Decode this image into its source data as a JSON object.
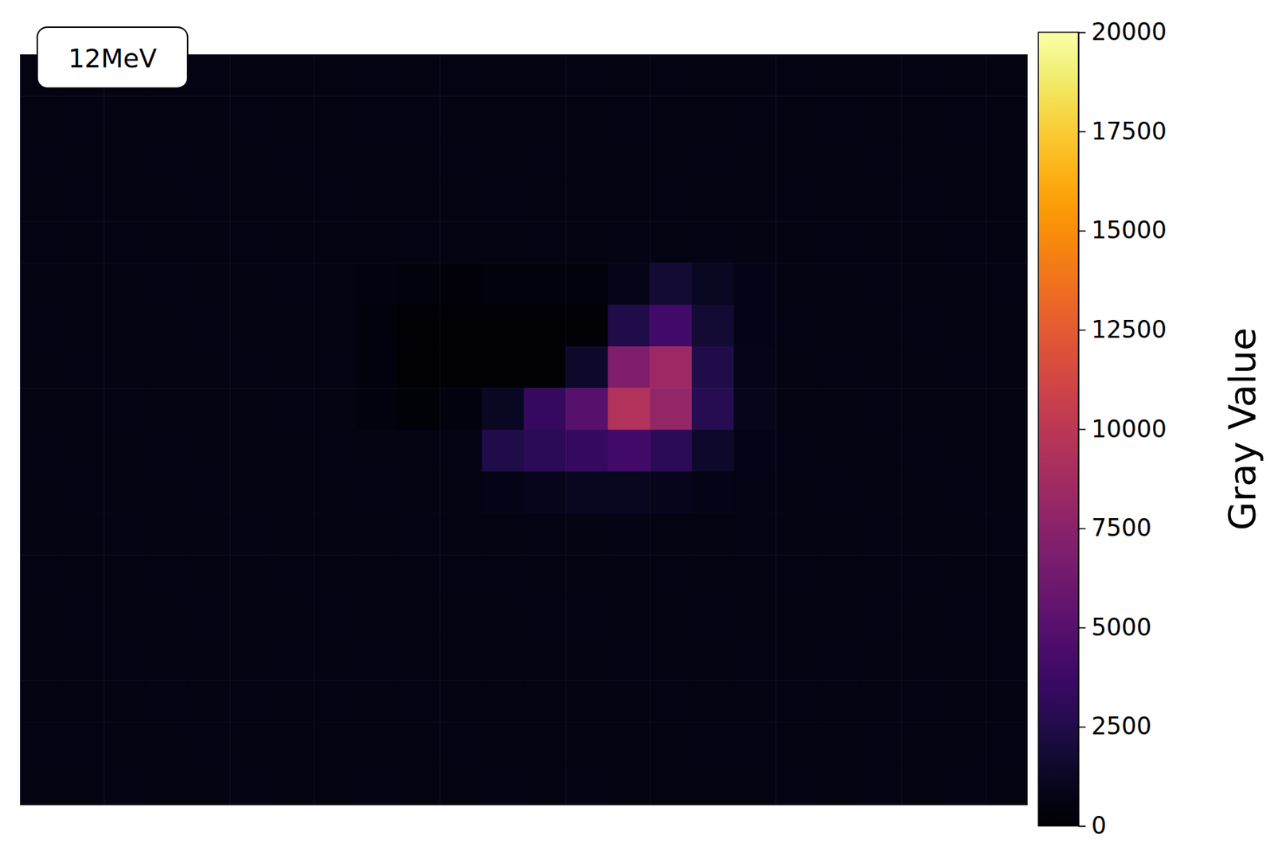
{
  "chart_data": {
    "type": "heatmap",
    "annotations": [
      "12MeV"
    ],
    "tick_labels": false,
    "color": "inferno",
    "colorbar": {
      "label": "Gray Value",
      "range": [
        0,
        20000
      ],
      "ticks": [
        0,
        2500,
        5000,
        7500,
        10000,
        12500,
        15000,
        17500,
        20000
      ]
    },
    "cells": [
      [
        700,
        650,
        720,
        680,
        760,
        700,
        640,
        690,
        730,
        670,
        710,
        650,
        700,
        740,
        680,
        720,
        690,
        660,
        710,
        700,
        650,
        730,
        680,
        700
      ],
      [
        680,
        720,
        650,
        700,
        690,
        740,
        700,
        660,
        710,
        720,
        680,
        700,
        650,
        690,
        730,
        700,
        660,
        710,
        680,
        740,
        700,
        670,
        720,
        690
      ],
      [
        720,
        680,
        700,
        740,
        660,
        700,
        720,
        690,
        650,
        700,
        740,
        680,
        720,
        700,
        670,
        690,
        720,
        700,
        650,
        700,
        730,
        690,
        700,
        660
      ],
      [
        690,
        710,
        680,
        700,
        720,
        660,
        700,
        740,
        700,
        680,
        700,
        720,
        680,
        650,
        700,
        720,
        690,
        700,
        730,
        680,
        700,
        720,
        660,
        700
      ],
      [
        710,
        700,
        730,
        660,
        700,
        720,
        690,
        700,
        680,
        720,
        660,
        700,
        710,
        690,
        720,
        700,
        760,
        700,
        690,
        710,
        680,
        700,
        720,
        690
      ],
      [
        700,
        680,
        700,
        720,
        690,
        700,
        710,
        680,
        600,
        400,
        380,
        400,
        420,
        450,
        900,
        1800,
        1200,
        800,
        700,
        690,
        720,
        700,
        680,
        710
      ],
      [
        720,
        700,
        690,
        700,
        720,
        680,
        700,
        700,
        450,
        150,
        120,
        130,
        140,
        200,
        2500,
        4000,
        1800,
        850,
        720,
        700,
        690,
        710,
        700,
        690
      ],
      [
        690,
        720,
        700,
        680,
        700,
        710,
        690,
        720,
        480,
        120,
        100,
        110,
        150,
        1500,
        7000,
        8500,
        2500,
        900,
        700,
        720,
        700,
        680,
        710,
        700
      ],
      [
        700,
        690,
        720,
        700,
        680,
        700,
        720,
        690,
        520,
        300,
        500,
        1200,
        3500,
        5000,
        9500,
        8000,
        2800,
        950,
        690,
        700,
        720,
        690,
        700,
        680
      ],
      [
        710,
        700,
        680,
        720,
        700,
        690,
        700,
        710,
        680,
        650,
        720,
        2500,
        3000,
        3500,
        4000,
        3000,
        1500,
        800,
        720,
        690,
        700,
        720,
        690,
        700
      ],
      [
        690,
        720,
        700,
        680,
        710,
        700,
        690,
        700,
        710,
        700,
        690,
        800,
        1000,
        1100,
        1100,
        1000,
        850,
        720,
        700,
        710,
        690,
        700,
        720,
        690
      ],
      [
        700,
        690,
        710,
        700,
        680,
        720,
        700,
        690,
        700,
        720,
        700,
        690,
        710,
        700,
        720,
        690,
        700,
        710,
        680,
        700,
        720,
        700,
        690,
        710
      ],
      [
        720,
        700,
        680,
        710,
        700,
        690,
        720,
        700,
        680,
        700,
        710,
        720,
        690,
        700,
        680,
        710,
        700,
        690,
        720,
        700,
        680,
        710,
        700,
        690
      ],
      [
        680,
        710,
        700,
        690,
        720,
        700,
        680,
        710,
        700,
        690,
        700,
        680,
        720,
        710,
        700,
        690,
        720,
        700,
        700,
        680,
        710,
        690,
        720,
        700
      ],
      [
        700,
        690,
        720,
        700,
        700,
        680,
        710,
        690,
        720,
        700,
        680,
        700,
        690,
        700,
        720,
        700,
        680,
        710,
        690,
        720,
        700,
        700,
        680,
        710
      ],
      [
        690,
        700,
        700,
        720,
        680,
        710,
        700,
        720,
        690,
        710,
        700,
        690,
        700,
        680,
        700,
        720,
        690,
        700,
        710,
        690,
        680,
        720,
        700,
        690
      ],
      [
        710,
        720,
        690,
        700,
        710,
        700,
        690,
        700,
        700,
        690,
        720,
        700,
        680,
        700,
        690,
        700,
        710,
        720,
        700,
        690,
        710,
        700,
        690,
        720
      ],
      [
        700,
        680,
        710,
        690,
        700,
        720,
        700,
        680,
        710,
        700,
        690,
        710,
        700,
        720,
        700,
        680,
        690,
        700,
        710,
        700,
        720,
        680,
        710,
        700
      ]
    ]
  }
}
